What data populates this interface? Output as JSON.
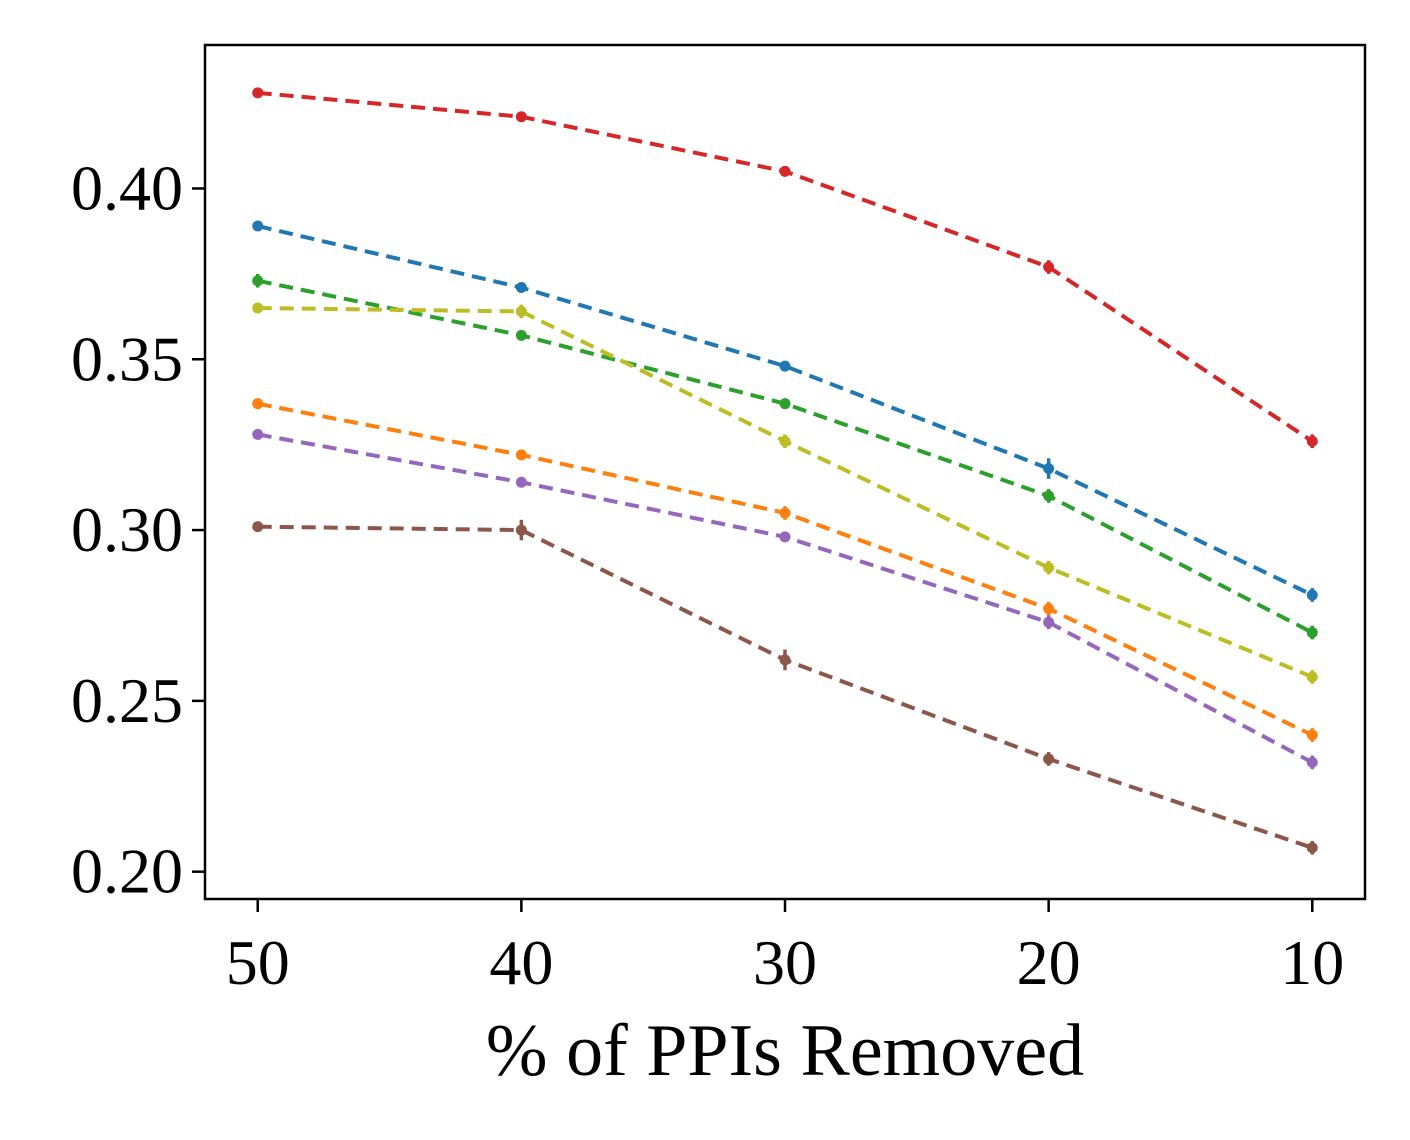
{
  "chart_data": {
    "type": "line",
    "title": "",
    "xlabel": "% of PPIs Removed",
    "ylabel": "",
    "x": [
      50,
      40,
      30,
      20,
      10
    ],
    "x_ticks": [
      50,
      40,
      30,
      20,
      10
    ],
    "x_tick_labels": [
      "50",
      "40",
      "30",
      "20",
      "10"
    ],
    "x_reversed": true,
    "xlim": [
      52,
      8
    ],
    "y_ticks": [
      0.2,
      0.25,
      0.3,
      0.35,
      0.4
    ],
    "y_tick_labels": [
      "0.20",
      "0.25",
      "0.30",
      "0.35",
      "0.40"
    ],
    "ylim": [
      0.192,
      0.442
    ],
    "grid": false,
    "line_style": "dashed",
    "series": [
      {
        "color": "#d62728",
        "values": [
          0.428,
          0.421,
          0.405,
          0.377,
          0.326
        ],
        "errors": [
          0.001,
          0.001,
          0.001,
          0.002,
          0.002
        ]
      },
      {
        "color": "#1f77b4",
        "values": [
          0.389,
          0.371,
          0.348,
          0.318,
          0.281
        ],
        "errors": [
          0.001,
          0.001,
          0.001,
          0.003,
          0.002
        ]
      },
      {
        "color": "#2ca02c",
        "values": [
          0.373,
          0.357,
          0.337,
          0.31,
          0.27
        ],
        "errors": [
          0.002,
          0.001,
          0.001,
          0.002,
          0.002
        ]
      },
      {
        "color": "#bcbd22",
        "values": [
          0.365,
          0.364,
          0.326,
          0.289,
          0.257
        ],
        "errors": [
          0.001,
          0.002,
          0.002,
          0.002,
          0.002
        ]
      },
      {
        "color": "#ff7f0e",
        "values": [
          0.337,
          0.322,
          0.305,
          0.277,
          0.24
        ],
        "errors": [
          0.001,
          0.001,
          0.002,
          0.002,
          0.002
        ]
      },
      {
        "color": "#9467bd",
        "values": [
          0.328,
          0.314,
          0.298,
          0.273,
          0.232
        ],
        "errors": [
          0.001,
          0.001,
          0.001,
          0.002,
          0.002
        ]
      },
      {
        "color": "#8c564b",
        "values": [
          0.301,
          0.3,
          0.262,
          0.233,
          0.207
        ],
        "errors": [
          0.001,
          0.003,
          0.003,
          0.002,
          0.002
        ]
      }
    ]
  }
}
